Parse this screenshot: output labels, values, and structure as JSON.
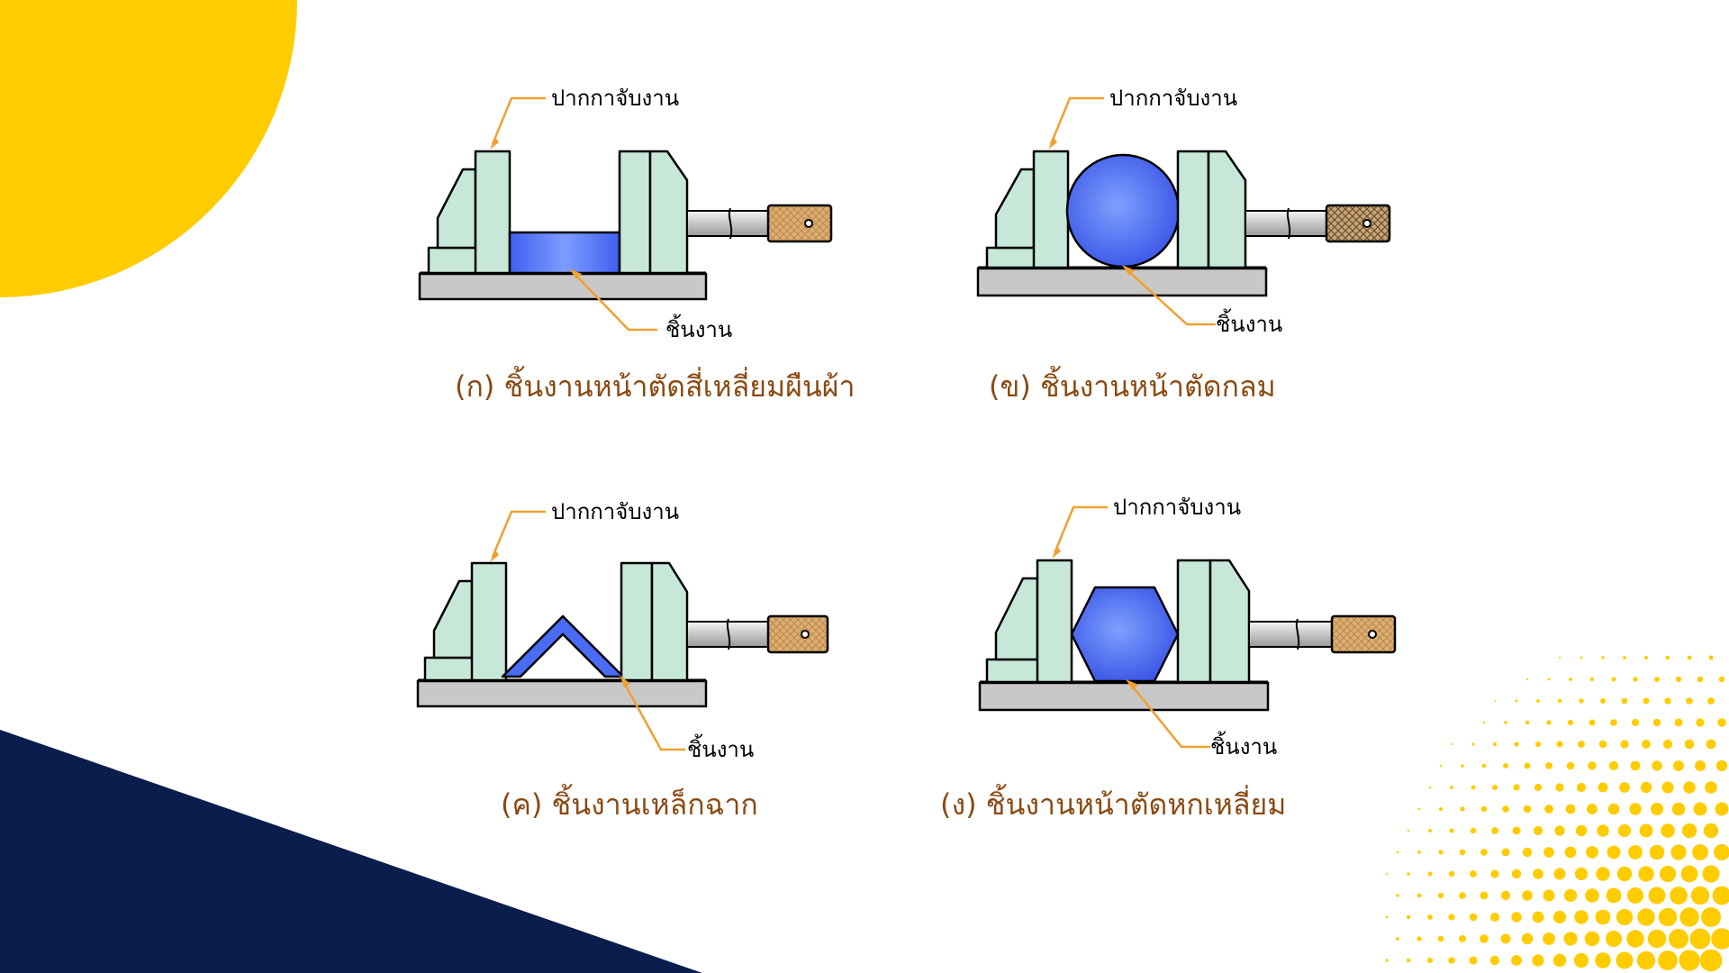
{
  "colors": {
    "yellow": "#ffcc00",
    "navy": "#0b1d4d",
    "jaw_fill": "#c7e8d8",
    "workpiece_blue": "#4a6cf5",
    "base_gray": "#c8c8c8",
    "handle_brass": "#d9a35f",
    "caption_brown": "#8a4a12",
    "leader_orange": "#f0a030"
  },
  "figures": [
    {
      "jaw_label": "ปากกาจับงาน",
      "work_label": "ชิ้นงาน",
      "caption": "(ก) ชิ้นงานหน้าตัดสี่เหลี่ยมผืนผ้า",
      "workpiece_shape": "rectangle"
    },
    {
      "jaw_label": "ปากกาจับงาน",
      "work_label": "ชิ้นงาน",
      "caption": "(ข) ชิ้นงานหน้าตัดกลม",
      "workpiece_shape": "circle"
    },
    {
      "jaw_label": "ปากกาจับงาน",
      "work_label": "ชิ้นงาน",
      "caption": "(ค) ชิ้นงานเหล็กฉาก",
      "workpiece_shape": "angle"
    },
    {
      "jaw_label": "ปากกาจับงาน",
      "work_label": "ชิ้นงาน",
      "caption": "(ง) ชิ้นงานหน้าตัดหกเหลี่ยม",
      "workpiece_shape": "hexagon"
    }
  ]
}
